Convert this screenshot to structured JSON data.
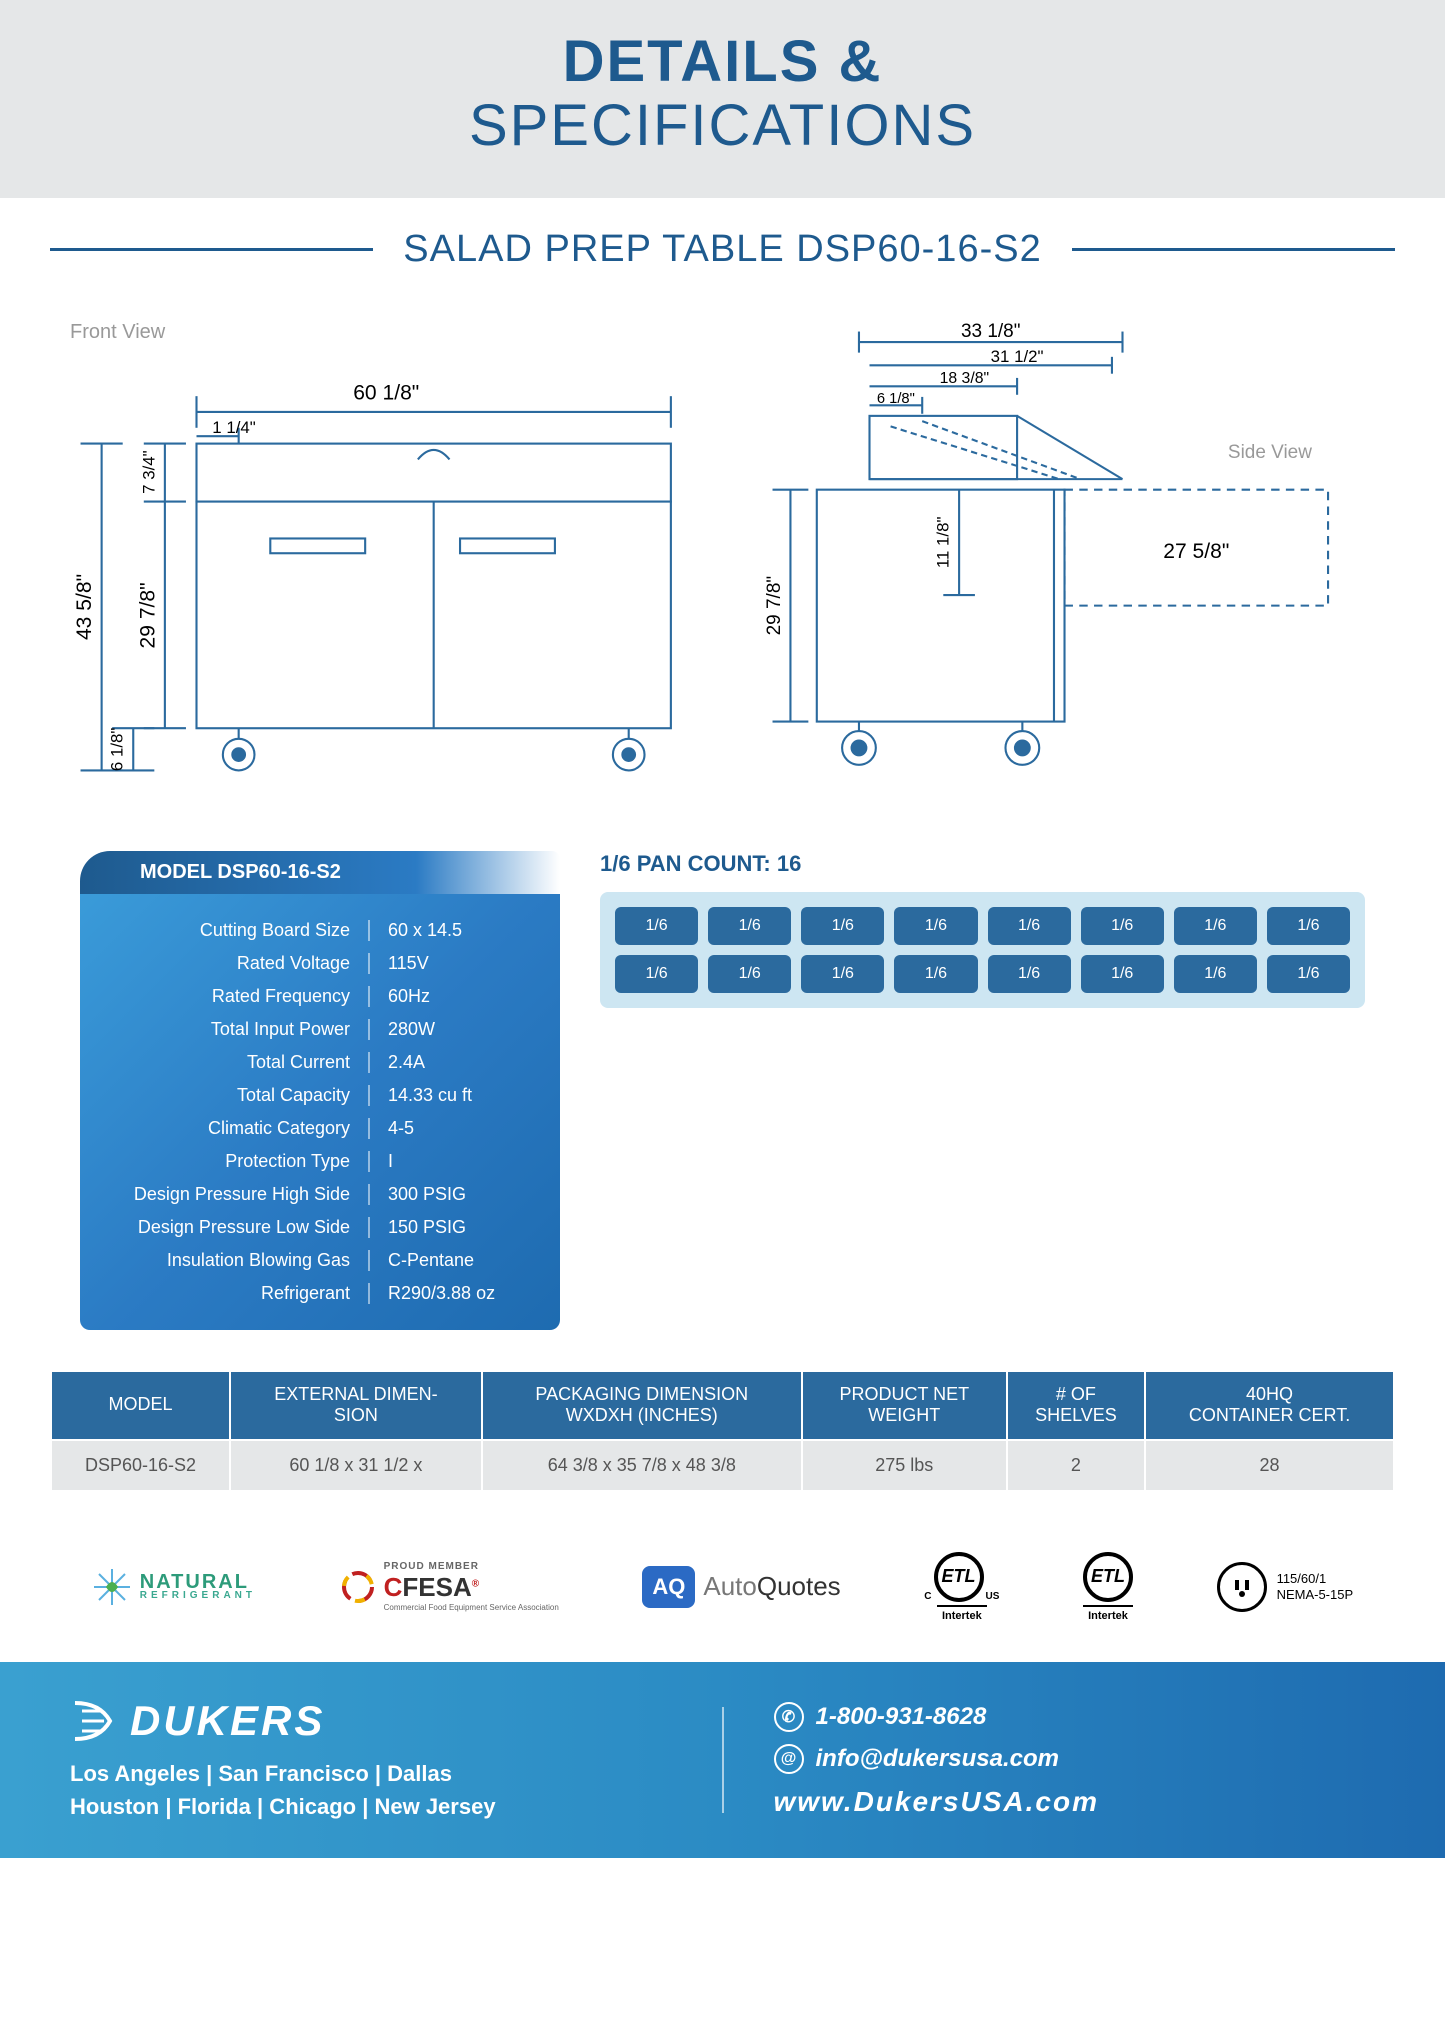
{
  "header": {
    "line1": "DETAILS &",
    "line2": "SPECIFICATIONS"
  },
  "subtitle": "SALAD PREP TABLE DSP60-16-S2",
  "diagrams": {
    "front_label": "Front View",
    "side_label": "Side View",
    "front": {
      "width_top": "60 1/8\"",
      "overall_h": "43 5/8\"",
      "door_h": "29 7/8\"",
      "top_h": "7 3/4\"",
      "caster_h": "6 1/8\"",
      "inset": "1 1/4\""
    },
    "side": {
      "top_w": "33 1/8\"",
      "inner_w": "31 1/2\"",
      "lid_w": "18 3/8\"",
      "shelf_w": "6 1/8\"",
      "board_w": "27 5/8\"",
      "lid_h": "11 1/8\"",
      "body_h": "29 7/8\""
    }
  },
  "spec_box": {
    "title": "MODEL DSP60-16-S2",
    "rows": [
      {
        "label": "Cutting Board Size",
        "value": "60 x 14.5"
      },
      {
        "label": "Rated  Voltage",
        "value": "115V"
      },
      {
        "label": "Rated  Frequency",
        "value": "60Hz"
      },
      {
        "label": "Total Input Power",
        "value": "280W"
      },
      {
        "label": "Total Current",
        "value": "2.4A"
      },
      {
        "label": "Total Capacity",
        "value": "14.33 cu ft"
      },
      {
        "label": "Climatic Category",
        "value": "4-5"
      },
      {
        "label": "Protection Type",
        "value": "I"
      },
      {
        "label": "Design Pressure High Side",
        "value": "300 PSIG"
      },
      {
        "label": "Design Pressure Low Side",
        "value": "150 PSIG"
      },
      {
        "label": "Insulation Blowing Gas",
        "value": "C-Pentane"
      },
      {
        "label": "Refrigerant",
        "value": "R290/3.88 oz"
      }
    ]
  },
  "pan": {
    "title": "1/6 PAN COUNT: 16",
    "cell_label": "1/6",
    "count": 16
  },
  "dim_table": {
    "headers": [
      "MODEL",
      "EXTERNAL DIMEN-\nSION",
      "PACKAGING DIMENSION\nWXDXH (INCHES)",
      "PRODUCT NET\nWEIGHT",
      "# OF\nSHELVES",
      "40HQ\nCONTAINER CERT."
    ],
    "row": [
      "DSP60-16-S2",
      "60 1/8 x 31 1/2 x",
      "64 3/8 x 35 7/8 x 48 3/8",
      "275 lbs",
      "2",
      "28"
    ]
  },
  "logos": {
    "natural": {
      "line1": "NATURAL",
      "line2": "REFRIGERANT"
    },
    "cfesa": {
      "member": "PROUD MEMBER",
      "name_c": "C",
      "name_rest": "FESA",
      "tagline": "Commercial Food Equipment Service Association"
    },
    "aq": {
      "badge": "AQ",
      "auto": "Auto",
      "quotes": "Quotes"
    },
    "etl": {
      "text": "ETL",
      "brand": "Intertek",
      "c_us": {
        "left": "C",
        "right": "US"
      }
    },
    "plug": {
      "line1": "115/60/1",
      "line2": "NEMA-5-15P"
    }
  },
  "footer": {
    "brand": "DUKERS",
    "locs1": "Los Angeles | San Francisco | Dallas",
    "locs2": "Houston | Florida | Chicago | New Jersey",
    "phone": "1-800-931-8628",
    "email": "info@dukersusa.com",
    "site": "www.DukersUSA.com"
  },
  "colors": {
    "primary_blue": "#1e5a8e",
    "mid_blue": "#2b6a9e",
    "light_blue": "#3aa0d0",
    "pan_bg": "#cde6f2",
    "grey_band": "#e5e7e8"
  }
}
